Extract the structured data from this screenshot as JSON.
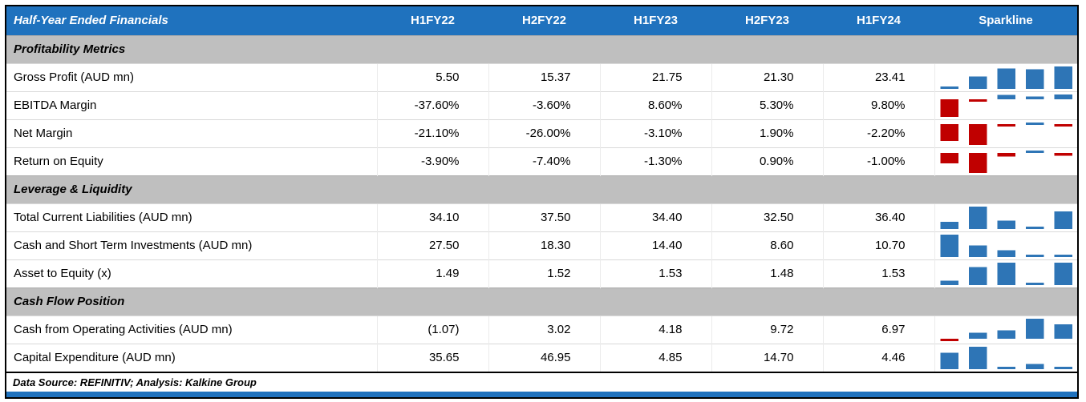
{
  "colors": {
    "header_bg": "#1F72BE",
    "header_text": "#FFFFFF",
    "section_bg": "#BFBFBF",
    "accent_bar": "#1F72BE",
    "spark_positive": "#2E75B6",
    "spark_negative": "#C00000"
  },
  "header": {
    "title": "Half-Year Ended Financials",
    "columns": [
      "H1FY22",
      "H2FY22",
      "H1FY23",
      "H2FY23",
      "H1FY24"
    ],
    "sparkline_label": "Sparkline"
  },
  "sections": [
    {
      "label": "Profitability Metrics",
      "rows": [
        {
          "label": "Gross Profit (AUD mn)",
          "values": [
            "5.50",
            "15.37",
            "21.75",
            "21.30",
            "23.41"
          ],
          "numeric": [
            5.5,
            15.37,
            21.75,
            21.3,
            23.41
          ]
        },
        {
          "label": "EBITDA Margin",
          "values": [
            "-37.60%",
            "-3.60%",
            "8.60%",
            "5.30%",
            "9.80%"
          ],
          "numeric": [
            -37.6,
            -3.6,
            8.6,
            5.3,
            9.8
          ]
        },
        {
          "label": "Net Margin",
          "values": [
            "-21.10%",
            "-26.00%",
            "-3.10%",
            "1.90%",
            "-2.20%"
          ],
          "numeric": [
            -21.1,
            -26.0,
            -3.1,
            1.9,
            -2.2
          ]
        },
        {
          "label": "Return on Equity",
          "values": [
            "-3.90%",
            "-7.40%",
            "-1.30%",
            "0.90%",
            "-1.00%"
          ],
          "numeric": [
            -3.9,
            -7.4,
            -1.3,
            0.9,
            -1.0
          ]
        }
      ]
    },
    {
      "label": "Leverage & Liquidity",
      "rows": [
        {
          "label": "Total Current Liabilities (AUD mn)",
          "values": [
            "34.10",
            "37.50",
            "34.40",
            "32.50",
            "36.40"
          ],
          "numeric": [
            34.1,
            37.5,
            34.4,
            32.5,
            36.4
          ]
        },
        {
          "label": "Cash and Short Term Investments (AUD mn)",
          "values": [
            "27.50",
            "18.30",
            "14.40",
            "8.60",
            "10.70"
          ],
          "numeric": [
            27.5,
            18.3,
            14.4,
            8.6,
            10.7
          ]
        },
        {
          "label": "Asset to Equity (x)",
          "values": [
            "1.49",
            "1.52",
            "1.53",
            "1.48",
            "1.53"
          ],
          "numeric": [
            1.49,
            1.52,
            1.53,
            1.48,
            1.53
          ]
        }
      ]
    },
    {
      "label": "Cash Flow Position",
      "rows": [
        {
          "label": "Cash from Operating Activities (AUD mn)",
          "values": [
            "(1.07)",
            "3.02",
            "4.18",
            "9.72",
            "6.97"
          ],
          "numeric": [
            -1.07,
            3.02,
            4.18,
            9.72,
            6.97
          ]
        },
        {
          "label": "Capital Expenditure (AUD mn)",
          "values": [
            "35.65",
            "46.95",
            "4.85",
            "14.70",
            "4.46"
          ],
          "numeric": [
            35.65,
            46.95,
            4.85,
            14.7,
            4.46
          ]
        }
      ]
    }
  ],
  "footer": {
    "text": "Data Source: REFINITIV; Analysis: Kalkine Group"
  },
  "chart_data": {
    "type": "table",
    "title": "Half-Year Ended Financials",
    "columns": [
      "H1FY22",
      "H2FY22",
      "H1FY23",
      "H2FY23",
      "H1FY24",
      "Sparkline"
    ],
    "sparkline_type": "column",
    "sections": [
      {
        "section": "Profitability Metrics",
        "rows": [
          {
            "metric": "Gross Profit (AUD mn)",
            "values": [
              5.5,
              15.37,
              21.75,
              21.3,
              23.41
            ]
          },
          {
            "metric": "EBITDA Margin",
            "values": [
              -37.6,
              -3.6,
              8.6,
              5.3,
              9.8
            ],
            "unit": "%"
          },
          {
            "metric": "Net Margin",
            "values": [
              -21.1,
              -26.0,
              -3.1,
              1.9,
              -2.2
            ],
            "unit": "%"
          },
          {
            "metric": "Return on Equity",
            "values": [
              -3.9,
              -7.4,
              -1.3,
              0.9,
              -1.0
            ],
            "unit": "%"
          }
        ]
      },
      {
        "section": "Leverage & Liquidity",
        "rows": [
          {
            "metric": "Total Current Liabilities (AUD mn)",
            "values": [
              34.1,
              37.5,
              34.4,
              32.5,
              36.4
            ]
          },
          {
            "metric": "Cash and Short Term Investments (AUD mn)",
            "values": [
              27.5,
              18.3,
              14.4,
              8.6,
              10.7
            ]
          },
          {
            "metric": "Asset to Equity (x)",
            "values": [
              1.49,
              1.52,
              1.53,
              1.48,
              1.53
            ]
          }
        ]
      },
      {
        "section": "Cash Flow Position",
        "rows": [
          {
            "metric": "Cash from Operating Activities (AUD mn)",
            "values": [
              -1.07,
              3.02,
              4.18,
              9.72,
              6.97
            ]
          },
          {
            "metric": "Capital Expenditure (AUD mn)",
            "values": [
              35.65,
              46.95,
              4.85,
              14.7,
              4.46
            ]
          }
        ]
      }
    ],
    "source_note": "Data Source: REFINITIV; Analysis: Kalkine Group"
  }
}
